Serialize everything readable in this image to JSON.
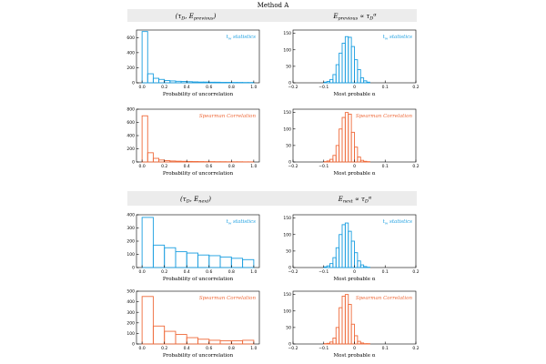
{
  "figure": {
    "title": "Method A",
    "banners": [
      {
        "left": "(τ",
        "left_sub": "D",
        "left_rest": ", E",
        "left_sub2": "previous",
        "left_close": ")",
        "right": "E",
        "right_sub": "previous",
        "right_mid": " ∝ τ",
        "right_sub2": "D",
        "right_sup": "α"
      },
      {
        "left": "(τ",
        "left_sub": "D",
        "left_rest": ", E",
        "left_sub2": "next",
        "left_close": ")",
        "right": "E",
        "right_sub": "next",
        "right_mid": " ∝ τ",
        "right_sub2": "D",
        "right_sup": "α"
      }
    ],
    "colors": {
      "blue": "#1a9ee0",
      "orange": "#ef6a3a",
      "banner": "#ececec",
      "axis": "#000000"
    }
  },
  "chart_data": [
    {
      "id": "p1",
      "type": "bar",
      "legend": "t_w statistics",
      "color_key": "blue",
      "xlabel": "Probability of uncorrelation",
      "xlim": [
        -0.05,
        1.05
      ],
      "ylim": [
        0,
        700
      ],
      "xticks": [
        "0.0",
        "0.2",
        "0.4",
        "0.6",
        "0.8",
        "1.0"
      ],
      "yticks": [
        "0",
        "200",
        "400",
        "600"
      ],
      "bin_start": 0.0,
      "bin_width": 0.05,
      "values": [
        680,
        120,
        60,
        45,
        30,
        25,
        20,
        18,
        15,
        12,
        10,
        10,
        8,
        8,
        6,
        6,
        5,
        5,
        4,
        4
      ]
    },
    {
      "id": "p2",
      "type": "bar",
      "legend": "t_w statistics",
      "color_key": "blue",
      "xlabel": "Most probable α",
      "xlim": [
        -0.2,
        0.2
      ],
      "ylim": [
        0,
        160
      ],
      "xticks": [
        "−0.2",
        "−0.1",
        "0",
        "0.1",
        "0.2"
      ],
      "yticks": [
        "0",
        "50",
        "100",
        "150"
      ],
      "bin_start": -0.1,
      "bin_width": 0.01,
      "values": [
        2,
        4,
        10,
        25,
        55,
        90,
        120,
        140,
        138,
        110,
        70,
        40,
        15,
        6,
        2
      ]
    },
    {
      "id": "p3",
      "type": "bar",
      "legend": "Spearman Correlation",
      "color_key": "orange",
      "xlabel": "Probability of uncorrelation",
      "xlim": [
        -0.05,
        1.05
      ],
      "ylim": [
        0,
        800
      ],
      "xticks": [
        "0.0",
        "0.2",
        "0.4",
        "0.6",
        "0.8",
        "1.0"
      ],
      "yticks": [
        "0",
        "200",
        "400",
        "600",
        "800"
      ],
      "bin_start": 0.0,
      "bin_width": 0.05,
      "values": [
        700,
        140,
        55,
        30,
        20,
        15,
        12,
        10,
        8,
        7,
        6,
        5,
        5,
        4,
        4,
        3,
        3,
        3,
        2,
        2
      ]
    },
    {
      "id": "p4",
      "type": "bar",
      "legend": "Spearman Correlation",
      "color_key": "orange",
      "xlabel": "Most probable α",
      "xlim": [
        -0.2,
        0.2
      ],
      "ylim": [
        0,
        160
      ],
      "xticks": [
        "−0.2",
        "−0.1",
        "0",
        "0.1",
        "0.2"
      ],
      "yticks": [
        "0",
        "50",
        "100",
        "150"
      ],
      "bin_start": -0.1,
      "bin_width": 0.01,
      "values": [
        1,
        3,
        8,
        20,
        50,
        100,
        135,
        150,
        145,
        90,
        45,
        15,
        5,
        2,
        1
      ]
    },
    {
      "id": "p5",
      "type": "bar",
      "legend": "t_w statistics",
      "color_key": "blue",
      "xlabel": "Probability of uncorrelation",
      "xlim": [
        -0.05,
        1.05
      ],
      "ylim": [
        0,
        400
      ],
      "xticks": [
        "0.0",
        "0.2",
        "0.4",
        "0.6",
        "0.8",
        "1.0"
      ],
      "yticks": [
        "0",
        "100",
        "200",
        "300",
        "400"
      ],
      "bin_start": 0.0,
      "bin_width": 0.1,
      "values": [
        380,
        170,
        150,
        120,
        110,
        95,
        90,
        80,
        70,
        60
      ]
    },
    {
      "id": "p6",
      "type": "bar",
      "legend": "t_w statistics",
      "color_key": "blue",
      "xlabel": "Most probable α",
      "xlim": [
        -0.2,
        0.2
      ],
      "ylim": [
        0,
        160
      ],
      "xticks": [
        "−0.2",
        "−0.1",
        "0",
        "0.1",
        "0.2"
      ],
      "yticks": [
        "0",
        "50",
        "100",
        "150"
      ],
      "bin_start": -0.1,
      "bin_width": 0.01,
      "values": [
        2,
        5,
        12,
        30,
        60,
        100,
        130,
        135,
        110,
        80,
        45,
        20,
        8,
        3,
        1
      ]
    },
    {
      "id": "p7",
      "type": "bar",
      "legend": "Spearman Correlation",
      "color_key": "orange",
      "xlabel": "Probability of uncorrelation",
      "xlim": [
        -0.05,
        1.05
      ],
      "ylim": [
        0,
        500
      ],
      "xticks": [
        "0.0",
        "0.2",
        "0.4",
        "0.6",
        "0.8",
        "1.0"
      ],
      "yticks": [
        "0",
        "100",
        "200",
        "300",
        "400",
        "500"
      ],
      "bin_start": 0.0,
      "bin_width": 0.1,
      "values": [
        450,
        170,
        120,
        90,
        60,
        45,
        35,
        30,
        30,
        35
      ]
    },
    {
      "id": "p8",
      "type": "bar",
      "legend": "Spearman Correlation",
      "color_key": "orange",
      "xlabel": "Most probable α",
      "xlim": [
        -0.2,
        0.2
      ],
      "ylim": [
        0,
        160
      ],
      "xticks": [
        "−0.2",
        "−0.1",
        "0",
        "0.1",
        "0.2"
      ],
      "yticks": [
        "0",
        "50",
        "100",
        "150"
      ],
      "bin_start": -0.1,
      "bin_width": 0.01,
      "values": [
        1,
        2,
        6,
        18,
        50,
        110,
        145,
        150,
        120,
        60,
        25,
        8,
        3,
        1,
        1
      ]
    }
  ]
}
